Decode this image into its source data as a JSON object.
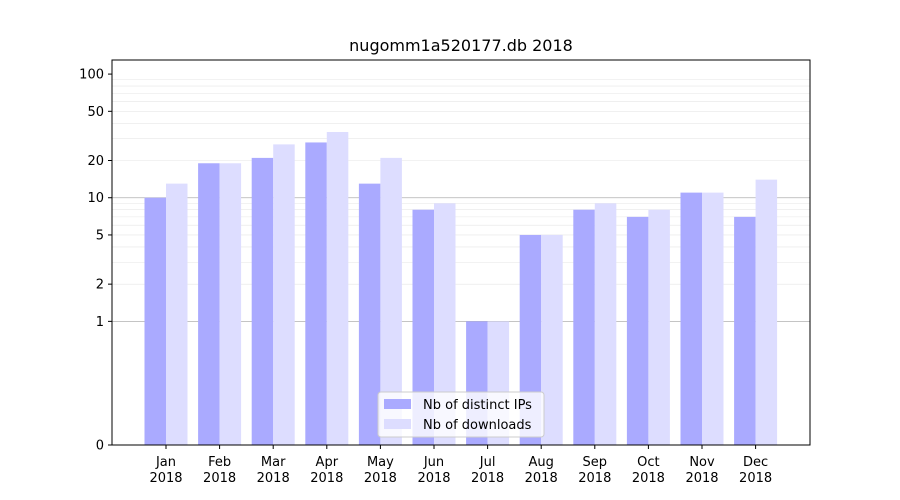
{
  "chart_data": {
    "type": "bar",
    "title": "nugomm1a520177.db 2018",
    "xlabel": "",
    "ylabel": "",
    "yscale": "symlog",
    "ylim": [
      0,
      130
    ],
    "yticks": [
      0,
      1,
      2,
      5,
      10,
      20,
      50,
      100
    ],
    "ytick_labels": [
      "0",
      "1",
      "2",
      "5",
      "10",
      "20",
      "50",
      "100"
    ],
    "categories": [
      "Jan\n2018",
      "Feb\n2018",
      "Mar\n2018",
      "Apr\n2018",
      "May\n2018",
      "Jun\n2018",
      "Jul\n2018",
      "Aug\n2018",
      "Sep\n2018",
      "Oct\n2018",
      "Nov\n2018",
      "Dec\n2018"
    ],
    "series": [
      {
        "name": "Nb of distinct IPs",
        "color": "#aaaaff",
        "values": [
          10,
          19,
          21,
          28,
          13,
          8,
          1,
          5,
          8,
          7,
          11,
          7
        ]
      },
      {
        "name": "Nb of downloads",
        "color": "#ddddff",
        "values": [
          13,
          19,
          27,
          34,
          21,
          9,
          1,
          5,
          9,
          8,
          11,
          14
        ]
      }
    ],
    "legend_position": "lower-center",
    "grid": true
  }
}
